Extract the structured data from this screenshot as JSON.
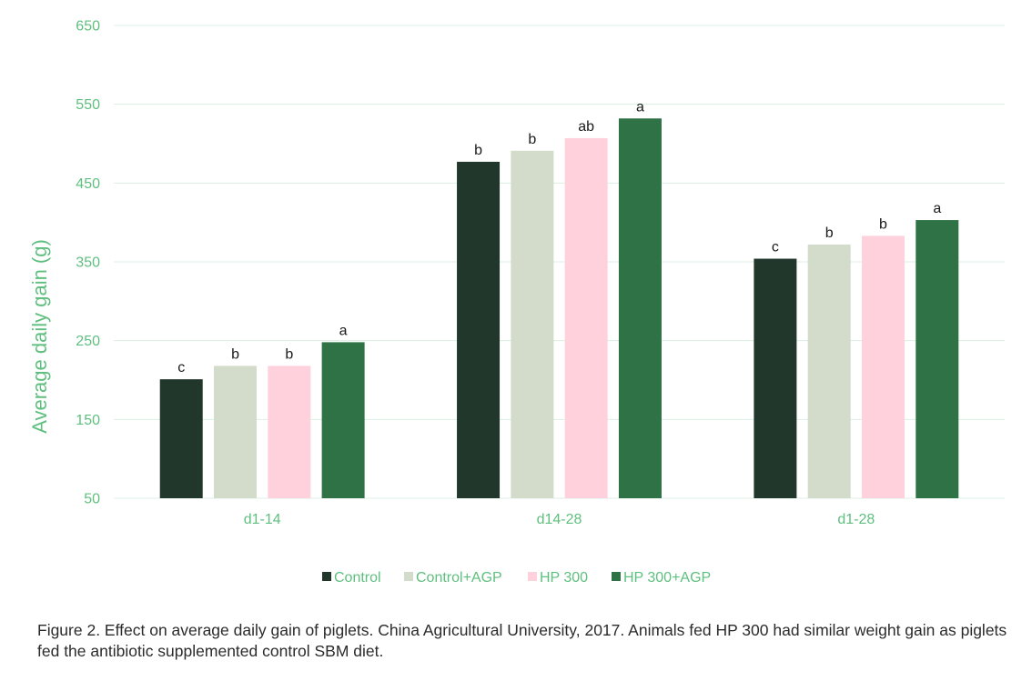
{
  "colors": {
    "axis_text": "#5fbf7f",
    "grid": "#dcefe3",
    "series": [
      "#22372b",
      "#d3dccb",
      "#ffd1dc",
      "#2e7246"
    ]
  },
  "chart_data": {
    "type": "bar",
    "ylabel": "Average daily gain (g)",
    "xlabel": "",
    "ylim": [
      50,
      650
    ],
    "yticks": [
      50,
      150,
      250,
      350,
      450,
      550,
      650
    ],
    "grid": true,
    "legend_position": "bottom",
    "categories": [
      "d1-14",
      "d14-28",
      "d1-28"
    ],
    "series": [
      {
        "name": "Control",
        "values": [
          201,
          477,
          354
        ],
        "labels": [
          "c",
          "b",
          "c"
        ]
      },
      {
        "name": "Control+AGP",
        "values": [
          218,
          491,
          372
        ],
        "labels": [
          "b",
          "b",
          "b"
        ]
      },
      {
        "name": "HP 300",
        "values": [
          218,
          507,
          383
        ],
        "labels": [
          "b",
          "ab",
          "b"
        ]
      },
      {
        "name": "HP 300+AGP",
        "values": [
          248,
          532,
          403
        ],
        "labels": [
          "a",
          "a",
          "a"
        ]
      }
    ]
  },
  "caption": "Figure 2. Effect on average daily gain of piglets. China Agricultural University, 2017. Animals fed HP 300 had similar weight gain as piglets fed the antibiotic supplemented control SBM diet."
}
